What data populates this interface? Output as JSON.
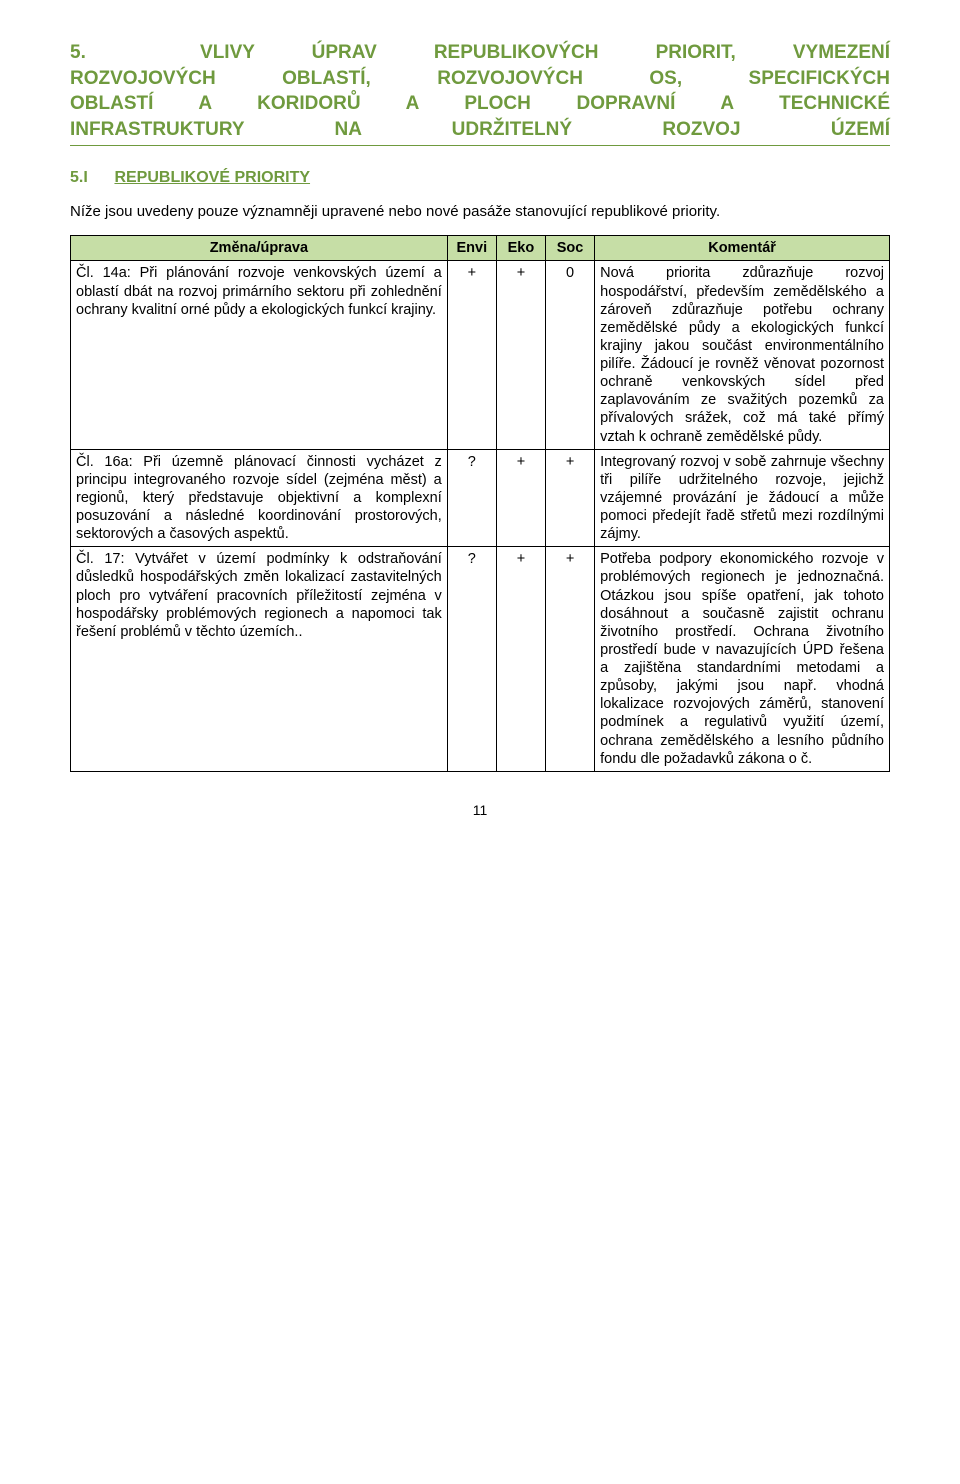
{
  "heading": {
    "num": "5.",
    "line1_rest": "VLIVY ÚPRAV REPUBLIKOVÝCH PRIORIT, VYMEZENÍ",
    "line2": "ROZVOJOVÝCH OBLASTÍ, ROZVOJOVÝCH OS, SPECIFICKÝCH",
    "line3": "OBLASTÍ A KORIDORŮ A PLOCH DOPRAVNÍ A TECHNICKÉ",
    "line4": "INFRASTRUKTURY NA UDRŽITELNÝ ROZVOJ ÚZEMÍ"
  },
  "subheading": {
    "num": "5.I",
    "label": "REPUBLIKOVÉ PRIORITY"
  },
  "intro": "Níže jsou uvedeny pouze významněji upravené nebo nové pasáže stanovující republikové priority.",
  "table": {
    "headers": {
      "change": "Změna/úprava",
      "envi": "Envi",
      "eko": "Eko",
      "soc": "Soc",
      "comment": "Komentář"
    },
    "rows": [
      {
        "change": "Čl. 14a: Při plánování rozvoje venkovských území a oblastí dbát na rozvoj primárního sektoru při zohlednění ochrany kvalitní orné půdy a ekologických funkcí krajiny.",
        "envi": "+",
        "eko": "+",
        "soc": "0",
        "comment": "Nová priorita zdůrazňuje rozvoj hospodářství, především zemědělského a zároveň zdůrazňuje potřebu ochrany zemědělské půdy a ekologických funkcí krajiny jakou součást environmentálního pilíře. Žádoucí je rovněž věnovat pozornost ochraně venkovských sídel před zaplavováním ze svažitých pozemků za přívalových srážek, což má také přímý vztah k ochraně zemědělské půdy."
      },
      {
        "change": "Čl. 16a: Při územně plánovací činnosti vycházet z principu integrovaného rozvoje sídel (zejména měst) a regionů, který představuje objektivní a komplexní posuzování a následné koordinování prostorových, sektorových a časových aspektů.",
        "envi": "?",
        "eko": "+",
        "soc": "+",
        "comment": "Integrovaný rozvoj v sobě zahrnuje všechny tři pilíře udržitelného rozvoje, jejichž vzájemné provázání je žádoucí a může pomoci předejít řadě střetů mezi rozdílnými zájmy."
      },
      {
        "change": "Čl. 17: Vytvářet v území podmínky k odstraňování důsledků hospodářských změn lokalizací zastavitelných ploch pro vytváření pracovních příležitostí zejména v hospodářsky problémových regionech a napomoci tak řešení problémů v těchto územích..",
        "envi": "?",
        "eko": "+",
        "soc": "+",
        "comment": "Potřeba podpory ekonomického rozvoje v problémových regionech je jednoznačná. Otázkou jsou spíše opatření, jak tohoto dosáhnout a současně zajistit ochranu životního prostředí. Ochrana životního prostředí bude v navazujících ÚPD řešena a zajištěna standardními metodami a způsoby, jakými jsou např. vhodná lokalizace rozvojových záměrů, stanovení podmínek a regulativů využití území, ochrana zemědělského a lesního půdního fondu dle požadavků zákona o č."
      }
    ]
  },
  "page_number": "11"
}
